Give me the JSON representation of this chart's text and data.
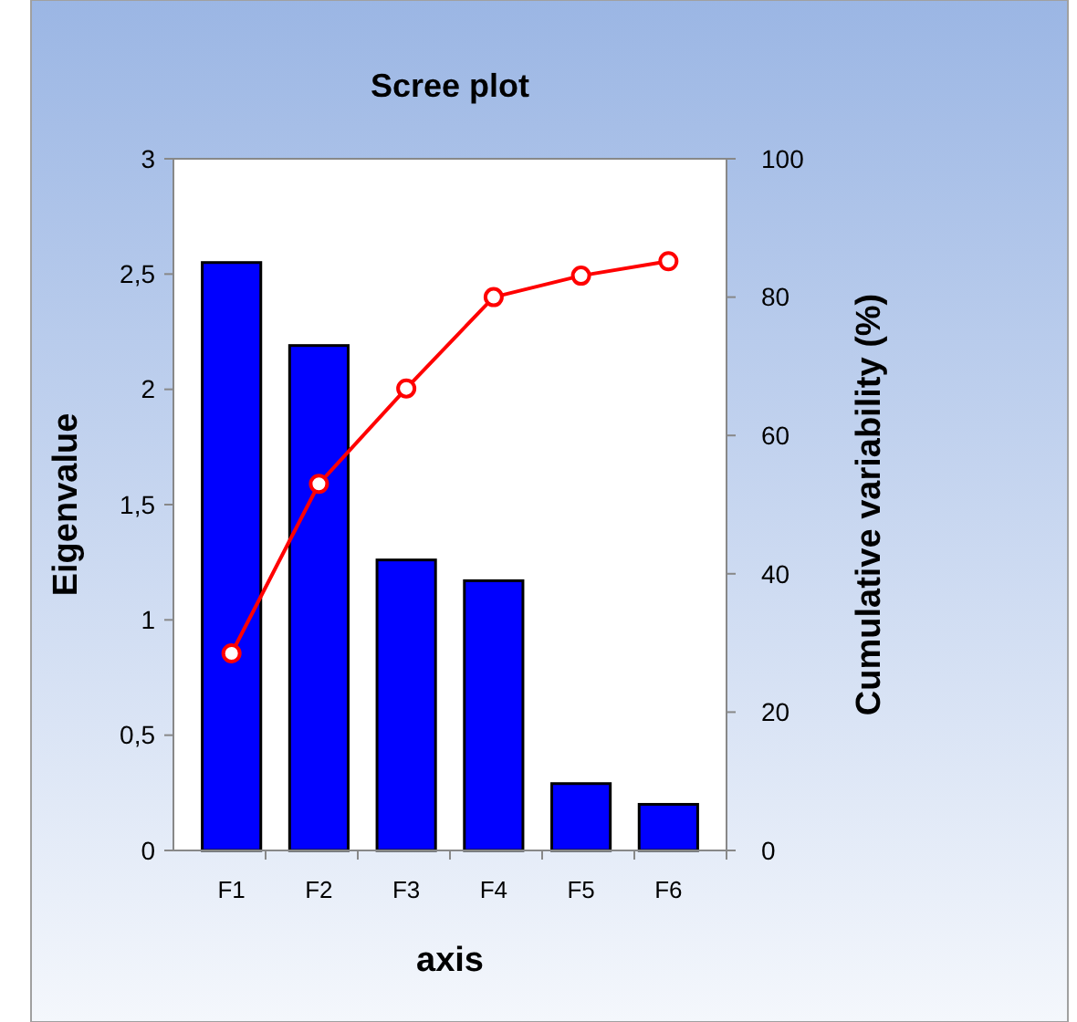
{
  "chart_data": {
    "type": "bar",
    "title": "Scree plot",
    "xlabel": "axis",
    "ylabel": "Eigenvalue",
    "y2label": "Cumulative variability (%)",
    "categories": [
      "F1",
      "F2",
      "F3",
      "F4",
      "F5",
      "F6"
    ],
    "series": [
      {
        "color": "#0000ff",
        "values": [
          2.55,
          2.19,
          1.26,
          1.17,
          0.29,
          0.2
        ]
      },
      {
        "type": "line",
        "axis": "y2",
        "color": "#ff0000",
        "marker": "circle",
        "values": [
          28.5,
          53,
          66.8,
          80,
          83.1,
          85.2
        ]
      }
    ],
    "ylim": [
      0,
      3
    ],
    "yticks": [
      0,
      {
        "value": 0.5,
        "label": "0,5"
      },
      1,
      {
        "value": 1.5,
        "label": "1,5"
      },
      2,
      {
        "value": 2.5,
        "label": "2,5"
      },
      3
    ],
    "y2lim": [
      0,
      100
    ],
    "y2ticks": [
      0,
      20,
      40,
      60,
      80,
      100
    ],
    "grid": false
  }
}
